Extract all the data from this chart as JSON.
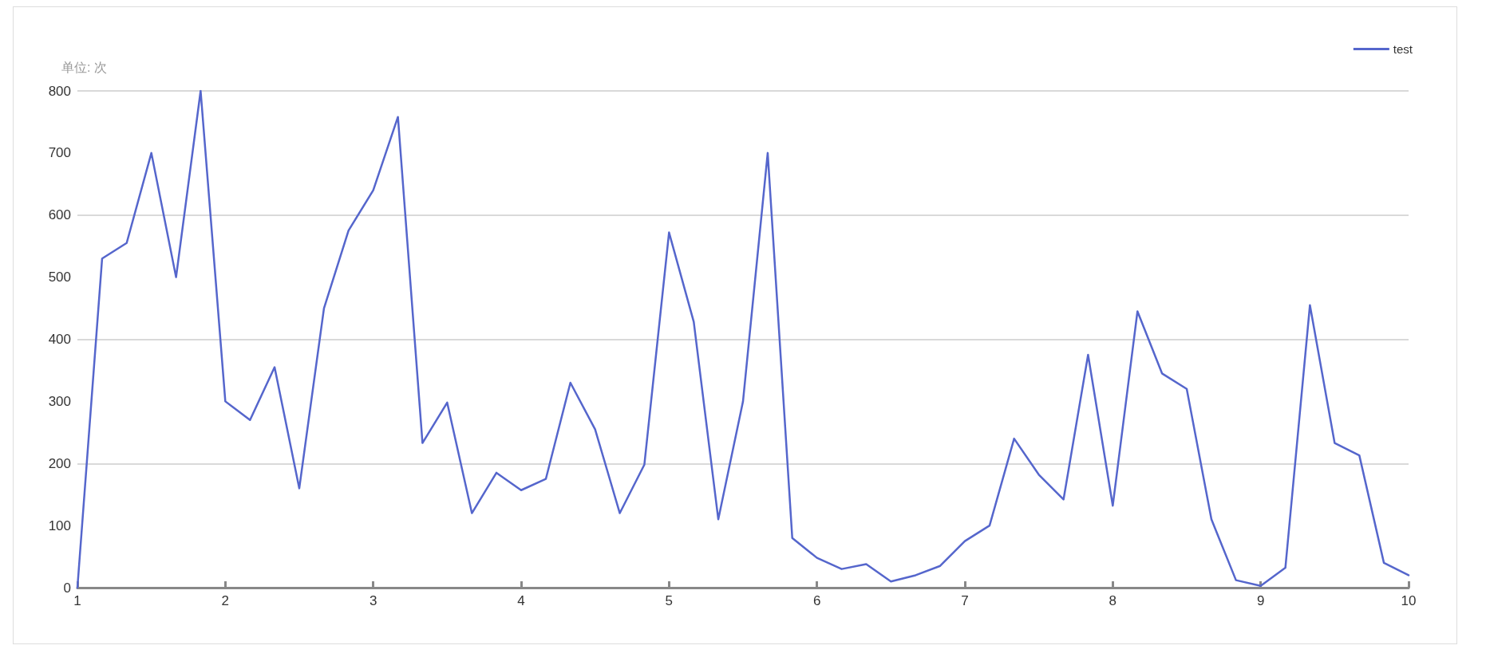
{
  "chart_data": {
    "type": "line",
    "ylabel": "单位: 次",
    "x": [
      1,
      1.167,
      1.333,
      1.5,
      1.667,
      1.833,
      2,
      2.167,
      2.333,
      2.5,
      2.667,
      2.833,
      3,
      3.167,
      3.333,
      3.5,
      3.667,
      3.833,
      4,
      4.167,
      4.333,
      4.5,
      4.667,
      4.833,
      5,
      5.167,
      5.333,
      5.5,
      5.667,
      5.833,
      6,
      6.167,
      6.333,
      6.5,
      6.667,
      6.833,
      7,
      7.167,
      7.333,
      7.5,
      7.667,
      7.833,
      8,
      8.167,
      8.333,
      8.5,
      8.667,
      8.833,
      9,
      9.167,
      9.333,
      9.5,
      9.667,
      9.833,
      10
    ],
    "series": [
      {
        "name": "test",
        "color": "#5566cc",
        "values": [
          0,
          530,
          555,
          700,
          500,
          800,
          300,
          270,
          355,
          160,
          450,
          575,
          640,
          758,
          233,
          298,
          120,
          185,
          157,
          175,
          330,
          255,
          120,
          198,
          572,
          428,
          110,
          300,
          700,
          80,
          48,
          30,
          38,
          10,
          20,
          35,
          75,
          100,
          240,
          182,
          142,
          375,
          132,
          445,
          345,
          320,
          110,
          12,
          3,
          32,
          455,
          233,
          213,
          40,
          20
        ]
      }
    ],
    "xlim": [
      1,
      10
    ],
    "xticks": [
      1,
      2,
      3,
      4,
      5,
      6,
      7,
      8,
      9,
      10
    ],
    "ylim": [
      0,
      800
    ],
    "yticks": [
      0,
      100,
      200,
      300,
      400,
      500,
      600,
      700,
      800
    ],
    "grid": "y",
    "legend": "top right",
    "marker": "none",
    "line_style": "solid"
  }
}
